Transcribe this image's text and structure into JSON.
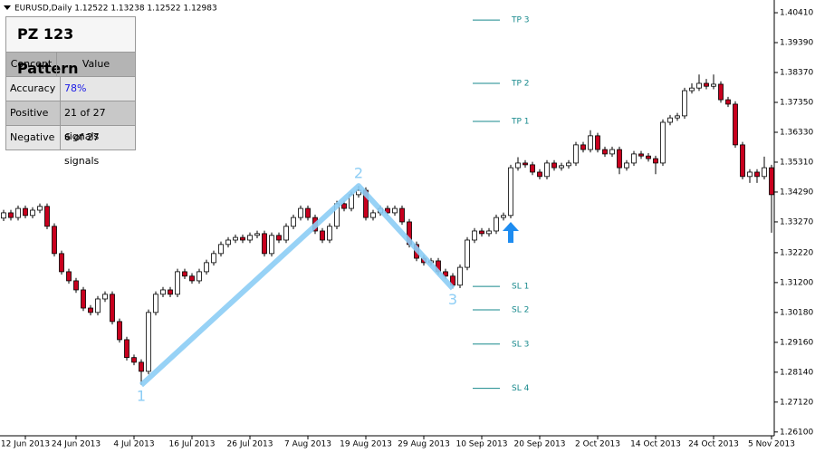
{
  "chart_data": {
    "type": "candlestick",
    "header": "EURUSD,Daily  1.12522 1.13238 1.12522 1.12983",
    "categories": [
      null,
      null,
      null,
      "12 Jun 2013",
      null,
      null,
      null,
      null,
      null,
      null,
      "24 Jun 2013",
      null,
      null,
      null,
      null,
      null,
      null,
      null,
      "4 Jul 2013",
      null,
      null,
      null,
      null,
      null,
      null,
      null,
      "16 Jul 2013",
      null,
      null,
      null,
      null,
      null,
      null,
      null,
      "26 Jul 2013",
      null,
      null,
      null,
      null,
      null,
      null,
      null,
      "7 Aug 2013",
      null,
      null,
      null,
      null,
      null,
      null,
      null,
      "19 Aug 2013",
      null,
      null,
      null,
      null,
      null,
      null,
      null,
      "29 Aug 2013",
      null,
      null,
      null,
      null,
      null,
      null,
      null,
      "10 Sep 2013",
      null,
      null,
      null,
      null,
      null,
      null,
      null,
      "20 Sep 2013",
      null,
      null,
      null,
      null,
      null,
      null,
      null,
      "2 Oct 2013",
      null,
      null,
      null,
      null,
      null,
      null,
      null,
      "14 Oct 2013",
      null,
      null,
      null,
      null,
      null,
      null,
      null,
      "24 Oct 2013",
      null,
      null,
      null,
      null,
      null,
      null,
      null,
      "5 Nov 2013"
    ],
    "open": [
      1.334,
      1.3358,
      1.3342,
      1.3373,
      1.3349,
      1.3367,
      1.338,
      1.3312,
      1.3219,
      1.3157,
      1.3126,
      1.3095,
      1.3033,
      1.3018,
      1.3064,
      1.308,
      1.2987,
      1.2925,
      1.2864,
      1.2848,
      1.2817,
      1.3018,
      1.308,
      1.3095,
      1.308,
      1.3157,
      1.3142,
      1.3126,
      1.3157,
      1.3188,
      1.3219,
      1.325,
      1.3265,
      1.3274,
      1.3265,
      1.3281,
      1.3287,
      1.3219,
      1.3281,
      1.3265,
      1.3312,
      1.3342,
      1.3373,
      1.3342,
      1.3296,
      1.3265,
      1.3312,
      1.3389,
      1.3373,
      1.342,
      1.3435,
      1.3342,
      1.3358,
      1.3373,
      1.3358,
      1.3373,
      1.3327,
      1.325,
      1.3203,
      1.3188,
      1.3194,
      1.3157,
      1.3142,
      1.3111,
      1.3172,
      1.3265,
      1.3296,
      1.3287,
      1.3296,
      1.3342,
      1.3349,
      1.3512,
      1.3528,
      1.3522,
      1.3497,
      1.3482,
      1.3528,
      1.3512,
      1.3519,
      1.3528,
      1.359,
      1.3574,
      1.3621,
      1.3574,
      1.3559,
      1.3574,
      1.3512,
      1.3528,
      1.3559,
      1.3552,
      1.3543,
      1.3528,
      1.3667,
      1.3682,
      1.3689,
      1.3775,
      1.3784,
      1.38,
      1.379,
      1.3797,
      1.3744,
      1.3729,
      1.359,
      1.3482,
      1.3497,
      1.3482,
      1.3512
    ],
    "high": [
      1.3368,
      1.3368,
      1.3383,
      1.3383,
      1.3377,
      1.339,
      1.339,
      1.3322,
      1.3229,
      1.3167,
      1.3136,
      1.3105,
      1.3043,
      1.3074,
      1.309,
      1.309,
      1.2997,
      1.2935,
      1.2874,
      1.2858,
      1.3028,
      1.309,
      1.3105,
      1.3105,
      1.3167,
      1.3167,
      1.3152,
      1.3167,
      1.3198,
      1.3229,
      1.326,
      1.3275,
      1.3284,
      1.3284,
      1.3291,
      1.3297,
      1.3297,
      1.3291,
      1.3291,
      1.3322,
      1.3352,
      1.3383,
      1.3383,
      1.3352,
      1.3306,
      1.3322,
      1.3399,
      1.3399,
      1.343,
      1.345,
      1.3445,
      1.3368,
      1.3383,
      1.3383,
      1.3383,
      1.3383,
      1.3337,
      1.326,
      1.3213,
      1.3204,
      1.3204,
      1.3167,
      1.3152,
      1.3182,
      1.3275,
      1.3306,
      1.3306,
      1.3306,
      1.3352,
      1.3359,
      1.3522,
      1.3548,
      1.3538,
      1.3532,
      1.3507,
      1.3538,
      1.3538,
      1.3529,
      1.3538,
      1.36,
      1.36,
      1.364,
      1.3631,
      1.3584,
      1.3584,
      1.3584,
      1.3538,
      1.3569,
      1.3569,
      1.3562,
      1.3553,
      1.3677,
      1.3692,
      1.3699,
      1.3785,
      1.38,
      1.383,
      1.3815,
      1.383,
      1.3807,
      1.3754,
      1.3739,
      1.36,
      1.3507,
      1.3507,
      1.355,
      1.3522
    ],
    "low": [
      1.333,
      1.3332,
      1.3332,
      1.3339,
      1.3339,
      1.3357,
      1.3302,
      1.3209,
      1.3147,
      1.3116,
      1.3085,
      1.3023,
      1.3008,
      1.3008,
      1.3054,
      1.2977,
      1.2915,
      1.2854,
      1.2838,
      1.277,
      1.2807,
      1.3008,
      1.307,
      1.307,
      1.307,
      1.3132,
      1.3116,
      1.3116,
      1.3147,
      1.3178,
      1.3209,
      1.324,
      1.3255,
      1.3255,
      1.3255,
      1.3271,
      1.3209,
      1.3209,
      1.3255,
      1.3255,
      1.3302,
      1.3332,
      1.3332,
      1.3286,
      1.3255,
      1.3255,
      1.3302,
      1.3363,
      1.3363,
      1.341,
      1.3332,
      1.3332,
      1.3348,
      1.3348,
      1.3348,
      1.3317,
      1.324,
      1.3193,
      1.3178,
      1.3178,
      1.3147,
      1.3132,
      1.31,
      1.3101,
      1.3162,
      1.3255,
      1.3277,
      1.3277,
      1.3286,
      1.3332,
      1.3339,
      1.3502,
      1.3512,
      1.3487,
      1.3472,
      1.3472,
      1.3502,
      1.3502,
      1.3509,
      1.3518,
      1.3564,
      1.3564,
      1.3564,
      1.3549,
      1.3549,
      1.349,
      1.3502,
      1.3518,
      1.3542,
      1.3533,
      1.349,
      1.3518,
      1.3657,
      1.3672,
      1.3679,
      1.3765,
      1.3774,
      1.378,
      1.378,
      1.3734,
      1.3719,
      1.358,
      1.3472,
      1.346,
      1.346,
      1.3472,
      1.329
    ],
    "close": [
      1.3358,
      1.3342,
      1.3373,
      1.3349,
      1.3367,
      1.338,
      1.3312,
      1.3219,
      1.3157,
      1.3126,
      1.3095,
      1.3033,
      1.3018,
      1.3064,
      1.308,
      1.2987,
      1.2925,
      1.2864,
      1.2848,
      1.2817,
      1.3018,
      1.308,
      1.3095,
      1.308,
      1.3157,
      1.3142,
      1.3126,
      1.3157,
      1.3188,
      1.3219,
      1.325,
      1.3265,
      1.3274,
      1.3265,
      1.3281,
      1.3287,
      1.3219,
      1.3281,
      1.3265,
      1.3312,
      1.3342,
      1.3373,
      1.3342,
      1.3296,
      1.3265,
      1.3312,
      1.3389,
      1.3373,
      1.342,
      1.3435,
      1.3342,
      1.3358,
      1.3373,
      1.3358,
      1.3373,
      1.3327,
      1.325,
      1.3203,
      1.3188,
      1.3194,
      1.3157,
      1.3142,
      1.3111,
      1.3172,
      1.3265,
      1.3296,
      1.3287,
      1.3296,
      1.3342,
      1.3349,
      1.3512,
      1.3528,
      1.3522,
      1.3497,
      1.3482,
      1.3528,
      1.3512,
      1.3519,
      1.3528,
      1.359,
      1.3574,
      1.3621,
      1.3574,
      1.3559,
      1.3574,
      1.3512,
      1.3528,
      1.3559,
      1.3552,
      1.3543,
      1.3528,
      1.3667,
      1.3682,
      1.3689,
      1.3775,
      1.3784,
      1.38,
      1.379,
      1.3797,
      1.3744,
      1.3729,
      1.359,
      1.3482,
      1.3497,
      1.3482,
      1.3512,
      1.342
    ],
    "bull_color": "#ffffff",
    "bear_color": "#c8001e",
    "ylim": [
      1.2597,
      1.4069
    ],
    "yticks": [
      {
        "value": 1.4041,
        "label": "1.40410"
      },
      {
        "value": 1.3939,
        "label": "1.39390"
      },
      {
        "value": 1.3837,
        "label": "1.38370"
      },
      {
        "value": 1.3735,
        "label": "1.37350"
      },
      {
        "value": 1.3633,
        "label": "1.36330"
      },
      {
        "value": 1.3531,
        "label": "1.35310"
      },
      {
        "value": 1.3429,
        "label": "1.34290"
      },
      {
        "value": 1.3327,
        "label": "1.33270"
      },
      {
        "value": 1.3222,
        "label": "1.32220"
      },
      {
        "value": 1.312,
        "label": "1.31200"
      },
      {
        "value": 1.3018,
        "label": "1.30180"
      },
      {
        "value": 1.2916,
        "label": "1.29160"
      },
      {
        "value": 1.2814,
        "label": "1.28140"
      },
      {
        "value": 1.2712,
        "label": "1.27120"
      },
      {
        "value": 1.261,
        "label": "1.26100"
      }
    ],
    "pattern_color": "#8ccdf5",
    "pattern_points": [
      {
        "label": "1",
        "index": 19,
        "price": 1.277
      },
      {
        "label": "2",
        "index": 49,
        "price": 1.345
      },
      {
        "label": "3",
        "index": 62,
        "price": 1.31
      }
    ],
    "level_color": "#17898c",
    "levels": [
      {
        "label": "TP 3",
        "value": 1.4016
      },
      {
        "label": "TP 2",
        "value": 1.38
      },
      {
        "label": "TP 1",
        "value": 1.367
      },
      {
        "label": "SL 1",
        "value": 1.3107
      },
      {
        "label": "SL 2",
        "value": 1.3027
      },
      {
        "label": "SL 3",
        "value": 1.291
      },
      {
        "label": "SL 4",
        "value": 1.2759
      }
    ],
    "signal_color": "#1e8cf0",
    "signal": {
      "index": 70,
      "price": 1.3327
    }
  },
  "panel": {
    "title": "PZ 123 Pattern",
    "columns": [
      "Concept",
      "Value"
    ],
    "rows": [
      [
        "Accuracy",
        "78%"
      ],
      [
        "Positive",
        "21 of 27 signals"
      ],
      [
        "Negative",
        "6 of 27 signals"
      ]
    ]
  }
}
